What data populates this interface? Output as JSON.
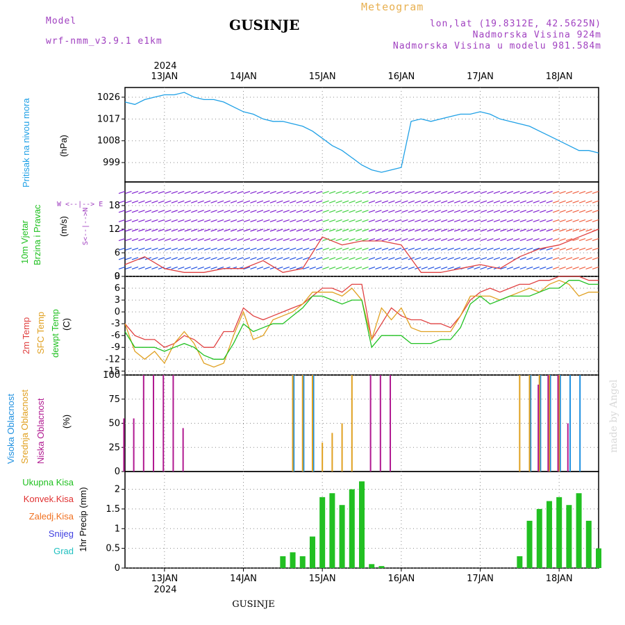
{
  "header": {
    "model_label": "Model",
    "model_name": "wrf-nmm_v3.9.1 e1km",
    "station": "GUSINJE",
    "title": "Meteogram",
    "lonlat": "lon,lat (19.8312E, 42.5625N)",
    "altitude": "Nadmorska Visina 924m",
    "model_altitude": "Nadmorska Visina u modelu 981.584m",
    "footer_station": "GUSINJE",
    "watermark": "made by Angel",
    "year_top": "2024",
    "year_bottom": "2024",
    "days": [
      "13JAN",
      "14JAN",
      "15JAN",
      "16JAN",
      "17JAN",
      "18JAN"
    ]
  },
  "panel_labels": {
    "pressure": {
      "name": "Pritisak na nivou mora",
      "unit": "(hPa)"
    },
    "wind": {
      "name1": "10m Vjetar",
      "name2": "Brzina i Pravac",
      "unit": "(m/s)",
      "compass_ns": "S<--|-->N",
      "compass_we": "W <--|--> E"
    },
    "temp": {
      "t2m": "2m Temp",
      "sfc": "SFC Temp",
      "dew": "dewpt Temp",
      "unit": "(C)"
    },
    "cloud": {
      "high": "Visoka Oblacnost",
      "mid": "Srednja Oblacnost",
      "low": "Niska Oblacnost",
      "unit": "(%)"
    },
    "precip": {
      "total": "Ukupna Kisa",
      "conv": "Konvek.Kisa",
      "frz": "Zaledj.Kisa",
      "snow": "Snijeg",
      "hail": "Grad",
      "unit": "1hr Precip (mm)"
    }
  },
  "colors": {
    "pressure": "#1ea0e6",
    "t2m": "#e04040",
    "sfc": "#e0a020",
    "dew": "#20c020",
    "cloud_high": "#1e90e0",
    "cloud_mid": "#e0a020",
    "cloud_low": "#b01890",
    "precip_total": "#22c022",
    "precip_conv": "#e03030",
    "precip_frz": "#f07020",
    "precip_snow": "#4040e0",
    "precip_hail": "#20c0c0",
    "model_label": "#a040c0",
    "title": "#e8b050",
    "info": "#a040c0"
  },
  "chart_data": [
    {
      "type": "line",
      "name": "pressure",
      "ylim": [
        991,
        1030
      ],
      "yticks": [
        999,
        1008,
        1017,
        1026
      ],
      "x": [
        0,
        3,
        6,
        9,
        12,
        15,
        18,
        21,
        24,
        27,
        30,
        33,
        36,
        39,
        42,
        45,
        48,
        51,
        54,
        57,
        60,
        63,
        66,
        69,
        72,
        75,
        78,
        81,
        84,
        87,
        90,
        93,
        96,
        99,
        102,
        105,
        108,
        111,
        114,
        117,
        120,
        123,
        126,
        129,
        132,
        135,
        138,
        141,
        144
      ],
      "values": [
        1024,
        1023,
        1025,
        1026,
        1027,
        1027,
        1028,
        1026,
        1025,
        1025,
        1024,
        1022,
        1020,
        1019,
        1017,
        1016,
        1016,
        1015,
        1014,
        1012,
        1009,
        1006,
        1004,
        1001,
        998,
        996,
        995,
        996,
        997,
        1016,
        1017,
        1016,
        1017,
        1018,
        1019,
        1019,
        1020,
        1019,
        1017,
        1016,
        1015,
        1014,
        1012,
        1010,
        1008,
        1006,
        1004,
        1004,
        1003
      ]
    },
    {
      "type": "line",
      "name": "wind",
      "ylim": [
        0,
        24
      ],
      "yticks": [
        0,
        6,
        12,
        18
      ],
      "x": [
        0,
        6,
        12,
        18,
        24,
        30,
        36,
        42,
        48,
        54,
        60,
        66,
        72,
        78,
        84,
        90,
        96,
        102,
        108,
        114,
        120,
        126,
        132,
        138,
        144
      ],
      "values": [
        3,
        5,
        2,
        1,
        1,
        2,
        2,
        4,
        1,
        2,
        10,
        8,
        9,
        9,
        8,
        1,
        1,
        2,
        3,
        2,
        5,
        7,
        8,
        10,
        12
      ]
    },
    {
      "type": "line",
      "name": "temperature",
      "ylim": [
        -16,
        9
      ],
      "yticks": [
        -15,
        -12,
        -9,
        -6,
        -3,
        0,
        3,
        6,
        9
      ],
      "x": [
        0,
        3,
        6,
        9,
        12,
        15,
        18,
        21,
        24,
        27,
        30,
        33,
        36,
        39,
        42,
        45,
        48,
        51,
        54,
        57,
        60,
        63,
        66,
        69,
        72,
        75,
        78,
        81,
        84,
        87,
        90,
        93,
        96,
        99,
        102,
        105,
        108,
        111,
        114,
        117,
        120,
        123,
        126,
        129,
        132,
        135,
        138,
        141,
        144
      ],
      "series": [
        {
          "name": "2m Temp",
          "values": [
            -3,
            -6,
            -7,
            -7,
            -9,
            -8,
            -6,
            -7,
            -9,
            -9,
            -5,
            -5,
            1,
            -1,
            -2,
            -1,
            0,
            1,
            2,
            4,
            6,
            6,
            5,
            7,
            7,
            -7,
            -3,
            1,
            -1,
            -2,
            -2,
            -3,
            -3,
            -4,
            -1,
            3,
            5,
            6,
            5,
            6,
            7,
            7,
            8,
            8,
            9,
            9,
            9,
            8,
            8
          ]
        },
        {
          "name": "SFC Temp",
          "values": [
            -3,
            -10,
            -12,
            -10,
            -13,
            -8,
            -5,
            -8,
            -13,
            -14,
            -13,
            -6,
            0,
            -7,
            -6,
            -2,
            -1,
            0,
            2,
            5,
            5,
            5,
            4,
            6,
            3,
            -7,
            1,
            -2,
            1,
            -4,
            -5,
            -5,
            -5,
            -5,
            -1,
            4,
            4,
            4,
            3,
            4,
            5,
            6,
            5,
            7,
            8,
            7,
            4,
            5,
            5
          ]
        },
        {
          "name": "dewpt Temp",
          "values": [
            -5,
            -9,
            -9,
            -9,
            -10,
            -9,
            -8,
            -9,
            -11,
            -12,
            -12,
            -8,
            -3,
            -5,
            -4,
            -3,
            -3,
            -1,
            1,
            4,
            4,
            3,
            2,
            3,
            3,
            -9,
            -6,
            -6,
            -6,
            -8,
            -8,
            -8,
            -7,
            -7,
            -4,
            2,
            4,
            2,
            3,
            4,
            4,
            4,
            5,
            6,
            6,
            8,
            8,
            7,
            7
          ]
        }
      ]
    },
    {
      "type": "bar",
      "name": "clouds",
      "ylim": [
        0,
        100
      ],
      "yticks": [
        0,
        25,
        50,
        75,
        100
      ],
      "x": [
        0,
        3,
        6,
        9,
        12,
        15,
        18,
        21,
        24,
        27,
        30,
        33,
        36,
        39,
        42,
        45,
        48,
        51,
        54,
        57,
        60,
        63,
        66,
        69,
        72,
        75,
        78,
        81,
        84,
        87,
        90,
        93,
        96,
        99,
        102,
        105,
        108,
        111,
        114,
        117,
        120,
        123,
        126,
        129,
        132,
        135,
        138,
        141,
        144
      ],
      "series": [
        {
          "name": "Visoka Oblacnost",
          "values": [
            0,
            0,
            0,
            0,
            0,
            0,
            0,
            0,
            0,
            0,
            0,
            0,
            0,
            0,
            0,
            0,
            0,
            100,
            100,
            100,
            0,
            0,
            0,
            0,
            0,
            0,
            0,
            0,
            0,
            0,
            0,
            0,
            0,
            0,
            0,
            0,
            0,
            0,
            0,
            0,
            0,
            100,
            100,
            100,
            100,
            100,
            100,
            0,
            0
          ]
        },
        {
          "name": "Srednja Oblacnost",
          "values": [
            0,
            0,
            0,
            0,
            0,
            0,
            0,
            0,
            0,
            0,
            0,
            0,
            0,
            0,
            0,
            0,
            0,
            100,
            100,
            100,
            30,
            40,
            50,
            100,
            0,
            0,
            0,
            0,
            0,
            0,
            0,
            0,
            0,
            0,
            0,
            0,
            0,
            0,
            0,
            0,
            100,
            100,
            100,
            100,
            100,
            0,
            0,
            0,
            0
          ]
        },
        {
          "name": "Niska Oblacnost",
          "values": [
            55,
            55,
            100,
            100,
            100,
            100,
            45,
            0,
            0,
            0,
            0,
            0,
            0,
            0,
            0,
            0,
            0,
            0,
            0,
            0,
            0,
            0,
            0,
            0,
            0,
            100,
            100,
            100,
            0,
            0,
            0,
            0,
            0,
            0,
            0,
            0,
            0,
            0,
            0,
            0,
            0,
            0,
            90,
            100,
            100,
            50,
            0,
            0,
            0
          ]
        }
      ]
    },
    {
      "type": "bar",
      "name": "precipitation",
      "ylim": [
        0,
        2.45
      ],
      "yticks": [
        0,
        0.5,
        1,
        1.5,
        2
      ],
      "x": [
        0,
        3,
        6,
        9,
        12,
        15,
        18,
        21,
        24,
        27,
        30,
        33,
        36,
        39,
        42,
        45,
        48,
        51,
        54,
        57,
        60,
        63,
        66,
        69,
        72,
        75,
        78,
        81,
        84,
        87,
        90,
        93,
        96,
        99,
        102,
        105,
        108,
        111,
        114,
        117,
        120,
        123,
        126,
        129,
        132,
        135,
        138,
        141,
        144
      ],
      "series": [
        {
          "name": "Ukupna Kisa",
          "values": [
            0,
            0,
            0,
            0,
            0,
            0,
            0,
            0,
            0,
            0,
            0,
            0,
            0,
            0,
            0,
            0,
            0.3,
            0.4,
            0.3,
            0.8,
            1.8,
            1.9,
            1.6,
            2.0,
            2.2,
            0.1,
            0.05,
            0,
            0,
            0,
            0,
            0,
            0,
            0,
            0,
            0,
            0,
            0,
            0,
            0,
            0.3,
            1.2,
            1.5,
            1.7,
            1.8,
            1.6,
            1.9,
            1.2,
            0.5
          ]
        }
      ]
    }
  ]
}
